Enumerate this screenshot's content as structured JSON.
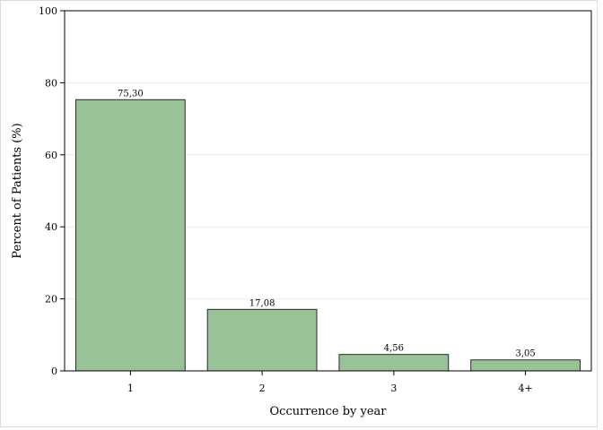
{
  "chart_data": {
    "type": "bar",
    "categories": [
      "1",
      "2",
      "3",
      "4+"
    ],
    "values": [
      75.3,
      17.08,
      4.56,
      3.05
    ],
    "value_labels": [
      "75,30",
      "17,08",
      "4,56",
      "3,05"
    ],
    "xlabel": "Occurrence by year",
    "ylabel": "Percent of Patients (%)",
    "ylim": [
      0,
      100
    ],
    "yticks": [
      0,
      20,
      40,
      60,
      80,
      100
    ],
    "grid": true,
    "bar_color": "#98c298",
    "bar_edge_color": "#2b2b2b",
    "grid_color": "#ebebeb"
  }
}
